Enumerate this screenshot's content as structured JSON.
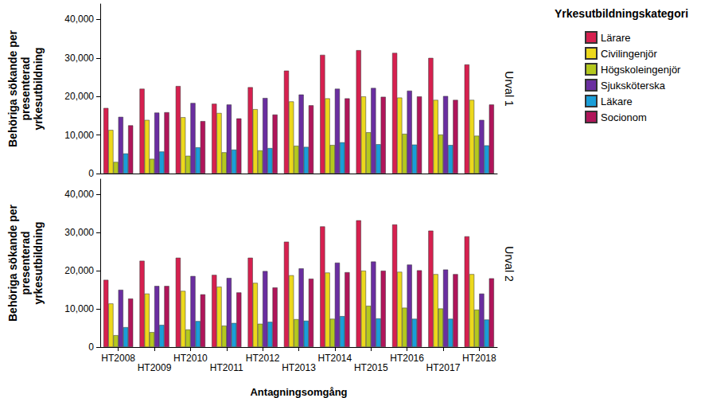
{
  "chart_data": [
    {
      "type": "bar",
      "title": "Urval 1",
      "ylabel": "Behöriga sökande per\npresenterad\nyrkesutbildning",
      "legend": "right",
      "legend_title": "Yrkesutbildningskategori",
      "tick_labels": "y",
      "grid": false,
      "categories": [
        "HT2008",
        "HT2009",
        "HT2010",
        "HT2011",
        "HT2012",
        "HT2013",
        "HT2014",
        "HT2015",
        "HT2016",
        "HT2017",
        "HT2018"
      ],
      "ylim": [
        0,
        44000
      ],
      "yticks": [
        0,
        10000,
        20000,
        30000,
        40000
      ],
      "series": [
        {
          "name": "Lärare",
          "color": "#d6204f",
          "values": [
            17000,
            22000,
            22700,
            18100,
            22400,
            26700,
            30800,
            32000,
            31300,
            30000,
            28300
          ]
        },
        {
          "name": "Civilingenjör",
          "color": "#ecd81c",
          "values": [
            11300,
            13900,
            14600,
            15700,
            16700,
            18700,
            19500,
            20000,
            19700,
            19100,
            19100
          ]
        },
        {
          "name": "Högskoleingenjör",
          "color": "#b4c81e",
          "values": [
            3000,
            3800,
            4600,
            5500,
            6000,
            7200,
            7400,
            10700,
            10300,
            10100,
            9800
          ]
        },
        {
          "name": "Sjuksköterska",
          "color": "#6a2ea0",
          "values": [
            14700,
            15800,
            18300,
            17900,
            19600,
            20500,
            22000,
            22200,
            21500,
            20100,
            13900
          ]
        },
        {
          "name": "Läkare",
          "color": "#1a9ed8",
          "values": [
            5200,
            5700,
            6800,
            6200,
            6600,
            6900,
            8100,
            7600,
            7500,
            7400,
            7300
          ]
        },
        {
          "name": "Socionom",
          "color": "#b0155a",
          "values": [
            12500,
            15900,
            13600,
            14300,
            15300,
            17700,
            19500,
            19900,
            20000,
            19100,
            17900
          ]
        }
      ]
    },
    {
      "type": "bar",
      "title": "Urval 2",
      "ylabel": "Behöriga sökande per\npresenterad\nyrkesutbildning",
      "xlabel": "Antagningsomgång",
      "grid": false,
      "categories": [
        "HT2008",
        "HT2009",
        "HT2010",
        "HT2011",
        "HT2012",
        "HT2013",
        "HT2014",
        "HT2015",
        "HT2016",
        "HT2017",
        "HT2018"
      ],
      "ylim": [
        0,
        44000
      ],
      "yticks": [
        0,
        10000,
        20000,
        30000,
        40000
      ],
      "series": [
        {
          "name": "Lärare",
          "color": "#d6204f",
          "values": [
            17600,
            22600,
            23400,
            18900,
            23400,
            27600,
            31600,
            33200,
            32100,
            30500,
            29000
          ]
        },
        {
          "name": "Civilingenjör",
          "color": "#ecd81c",
          "values": [
            11400,
            14000,
            14700,
            15800,
            16800,
            18800,
            19500,
            20000,
            19700,
            19100,
            19100
          ]
        },
        {
          "name": "Högskoleingenjör",
          "color": "#b4c81e",
          "values": [
            3100,
            3900,
            4600,
            5600,
            6100,
            7300,
            7400,
            10800,
            10300,
            10100,
            9800
          ]
        },
        {
          "name": "Sjuksköterska",
          "color": "#6a2ea0",
          "values": [
            15000,
            16000,
            18600,
            18100,
            19900,
            20600,
            22100,
            22400,
            21600,
            20300,
            14000
          ]
        },
        {
          "name": "Läkare",
          "color": "#1a9ed8",
          "values": [
            5200,
            5800,
            6800,
            6300,
            6600,
            6900,
            8100,
            7500,
            7400,
            7400,
            7200
          ]
        },
        {
          "name": "Socionom",
          "color": "#b0155a",
          "values": [
            12700,
            16000,
            13800,
            14300,
            15600,
            17900,
            19600,
            20000,
            20100,
            19100,
            18000
          ]
        }
      ]
    }
  ]
}
